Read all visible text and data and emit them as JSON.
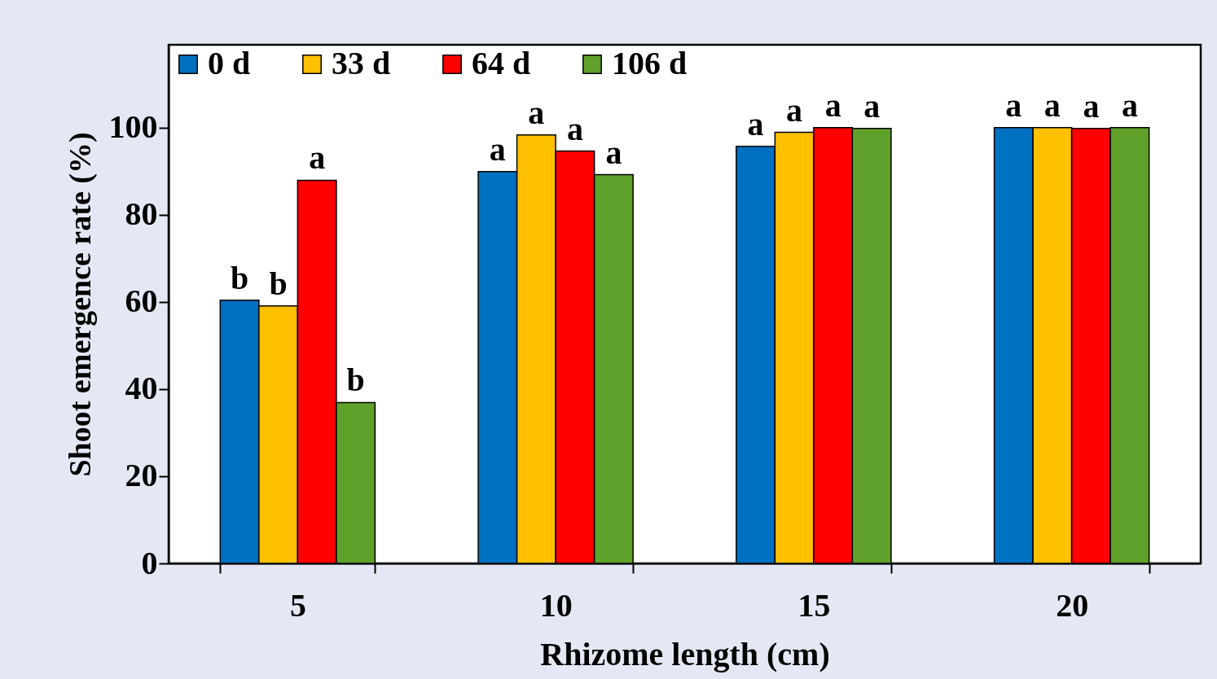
{
  "chart_data": {
    "type": "bar",
    "xlabel": "Rhizome length (cm)",
    "ylabel": "Shoot emergence rate (%)",
    "categories": [
      "5",
      "10",
      "15",
      "20"
    ],
    "series": [
      {
        "name": "0 d",
        "color": "#0070c0",
        "values": [
          60.4,
          89.9,
          95.7,
          100
        ]
      },
      {
        "name": "33 d",
        "color": "#ffc000",
        "values": [
          59.1,
          98.3,
          98.9,
          100
        ]
      },
      {
        "name": "64 d",
        "color": "#ff0000",
        "values": [
          87.9,
          94.6,
          100,
          99.8
        ]
      },
      {
        "name": "106 d",
        "color": "#5fa12a",
        "values": [
          36.9,
          89.2,
          99.8,
          100
        ]
      }
    ],
    "ylim": [
      0,
      119
    ],
    "yticks": [
      0,
      20,
      40,
      60,
      80,
      100
    ],
    "grid": false,
    "legend": "top left",
    "annotations": [
      {
        "text": "b",
        "x": "5",
        "y": 60.4
      },
      {
        "text": "b",
        "x": "5",
        "y": 59.1
      },
      {
        "text": "a",
        "x": "5",
        "y": 87.9
      },
      {
        "text": "b",
        "x": "5",
        "y": 36.9
      },
      {
        "text": "a",
        "x": "10",
        "y": 89.9
      },
      {
        "text": "a",
        "x": "10",
        "y": 98.3
      },
      {
        "text": "a",
        "x": "10",
        "y": 94.6
      },
      {
        "text": "a",
        "x": "10",
        "y": 89.2
      },
      {
        "text": "a",
        "x": "15",
        "y": 95.7
      },
      {
        "text": "a",
        "x": "15",
        "y": 98.9
      },
      {
        "text": "a",
        "x": "15",
        "y": 100
      },
      {
        "text": "a",
        "x": "15",
        "y": 99.8
      },
      {
        "text": "a",
        "x": "20",
        "y": 100
      },
      {
        "text": "a",
        "x": "20",
        "y": 100
      },
      {
        "text": "a",
        "x": "20",
        "y": 99.8
      },
      {
        "text": "a",
        "x": "20",
        "y": 100
      }
    ]
  }
}
